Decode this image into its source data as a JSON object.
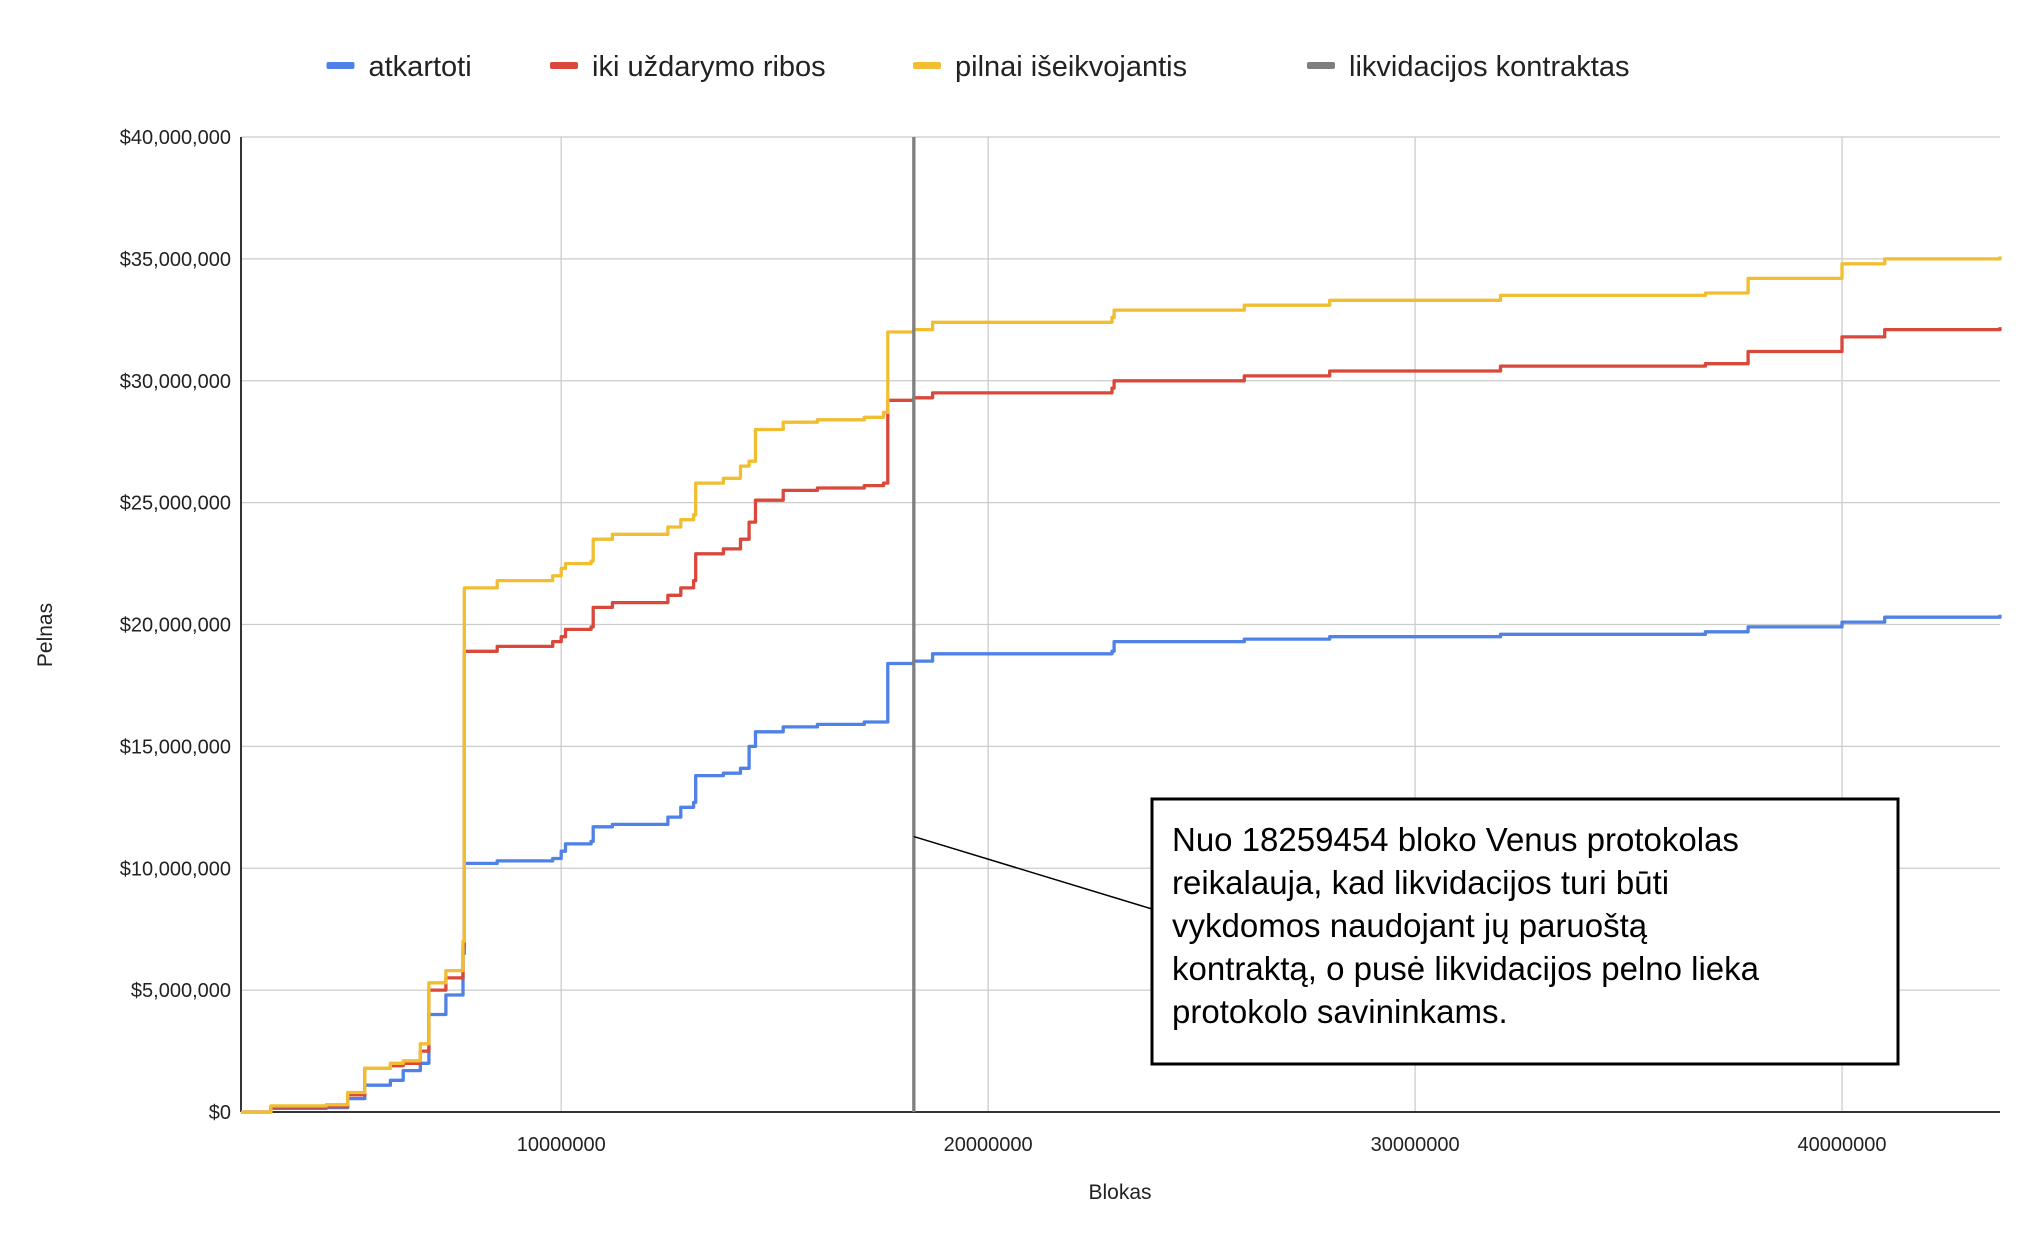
{
  "chart_data": {
    "type": "line",
    "title": "",
    "xlabel": "Blokas",
    "ylabel": "Pelnas",
    "xlim": [
      2500000,
      43700000
    ],
    "ylim": [
      0,
      40000000
    ],
    "x_ticks": [
      10000000,
      20000000,
      30000000,
      40000000
    ],
    "x_tick_labels": [
      "10000000",
      "20000000",
      "30000000",
      "40000000"
    ],
    "y_ticks": [
      0,
      5000000,
      10000000,
      15000000,
      20000000,
      25000000,
      30000000,
      35000000,
      40000000
    ],
    "y_tick_labels": [
      "$0",
      "$5,000,000",
      "$10,000,000",
      "$15,000,000",
      "$20,000,000",
      "$25,000,000",
      "$30,000,000",
      "$35,000,000",
      "$40,000,000"
    ],
    "grid": true,
    "legend_position": "top",
    "series": [
      {
        "name": "atkartoti",
        "color": "#4f81e6",
        "points": [
          [
            2500000,
            0
          ],
          [
            3200000,
            150000
          ],
          [
            4500000,
            180000
          ],
          [
            5000000,
            550000
          ],
          [
            5400000,
            1100000
          ],
          [
            6000000,
            1300000
          ],
          [
            6300000,
            1700000
          ],
          [
            6700000,
            2000000
          ],
          [
            6900000,
            4000000
          ],
          [
            7300000,
            4800000
          ],
          [
            7700000,
            5400000
          ],
          [
            7700000,
            6500000
          ],
          [
            7730000,
            10200000
          ],
          [
            8500000,
            10300000
          ],
          [
            9800000,
            10400000
          ],
          [
            10000000,
            10700000
          ],
          [
            10100000,
            11000000
          ],
          [
            10700000,
            11100000
          ],
          [
            10750000,
            11700000
          ],
          [
            11200000,
            11800000
          ],
          [
            12500000,
            12100000
          ],
          [
            12800000,
            12500000
          ],
          [
            13100000,
            12700000
          ],
          [
            13150000,
            13800000
          ],
          [
            13800000,
            13900000
          ],
          [
            14200000,
            14100000
          ],
          [
            14400000,
            15000000
          ],
          [
            14550000,
            15600000
          ],
          [
            15200000,
            15800000
          ],
          [
            16000000,
            15900000
          ],
          [
            17100000,
            16000000
          ],
          [
            17550000,
            16000000
          ],
          [
            17650000,
            18400000
          ],
          [
            18259454,
            18500000
          ],
          [
            18700000,
            18800000
          ],
          [
            22900000,
            18900000
          ],
          [
            22950000,
            19300000
          ],
          [
            26000000,
            19400000
          ],
          [
            28000000,
            19500000
          ],
          [
            32000000,
            19600000
          ],
          [
            36800000,
            19700000
          ],
          [
            37800000,
            19900000
          ],
          [
            40000000,
            20100000
          ],
          [
            41000000,
            20300000
          ],
          [
            43700000,
            20400000
          ]
        ]
      },
      {
        "name": "iki uždarymo ribos",
        "color": "#d9483b",
        "points": [
          [
            2500000,
            0
          ],
          [
            3200000,
            200000
          ],
          [
            4500000,
            220000
          ],
          [
            5000000,
            700000
          ],
          [
            5400000,
            1800000
          ],
          [
            6000000,
            1900000
          ],
          [
            6300000,
            2000000
          ],
          [
            6700000,
            2500000
          ],
          [
            6900000,
            5000000
          ],
          [
            7300000,
            5500000
          ],
          [
            7700000,
            6200000
          ],
          [
            7700000,
            6800000
          ],
          [
            7730000,
            18900000
          ],
          [
            8500000,
            19100000
          ],
          [
            9800000,
            19300000
          ],
          [
            10000000,
            19500000
          ],
          [
            10100000,
            19800000
          ],
          [
            10700000,
            19900000
          ],
          [
            10750000,
            20700000
          ],
          [
            11200000,
            20900000
          ],
          [
            12500000,
            21200000
          ],
          [
            12800000,
            21500000
          ],
          [
            13100000,
            21800000
          ],
          [
            13150000,
            22900000
          ],
          [
            13800000,
            23100000
          ],
          [
            14200000,
            23500000
          ],
          [
            14400000,
            24200000
          ],
          [
            14550000,
            25100000
          ],
          [
            15200000,
            25500000
          ],
          [
            16000000,
            25600000
          ],
          [
            17100000,
            25700000
          ],
          [
            17550000,
            25800000
          ],
          [
            17650000,
            29200000
          ],
          [
            18259454,
            29300000
          ],
          [
            18700000,
            29500000
          ],
          [
            22900000,
            29700000
          ],
          [
            22950000,
            30000000
          ],
          [
            26000000,
            30200000
          ],
          [
            28000000,
            30400000
          ],
          [
            32000000,
            30600000
          ],
          [
            36800000,
            30700000
          ],
          [
            37800000,
            31200000
          ],
          [
            40000000,
            31800000
          ],
          [
            41000000,
            32100000
          ],
          [
            43700000,
            32200000
          ]
        ]
      },
      {
        "name": "pilnai išeikvojantis",
        "color": "#f1be32",
        "points": [
          [
            2500000,
            0
          ],
          [
            3200000,
            250000
          ],
          [
            4500000,
            300000
          ],
          [
            5000000,
            800000
          ],
          [
            5400000,
            1800000
          ],
          [
            6000000,
            2000000
          ],
          [
            6300000,
            2100000
          ],
          [
            6700000,
            2800000
          ],
          [
            6900000,
            5300000
          ],
          [
            7300000,
            5800000
          ],
          [
            7700000,
            6500000
          ],
          [
            7700000,
            7000000
          ],
          [
            7730000,
            21500000
          ],
          [
            8500000,
            21800000
          ],
          [
            9800000,
            22000000
          ],
          [
            10000000,
            22300000
          ],
          [
            10100000,
            22500000
          ],
          [
            10700000,
            22600000
          ],
          [
            10750000,
            23500000
          ],
          [
            11200000,
            23700000
          ],
          [
            12500000,
            24000000
          ],
          [
            12800000,
            24300000
          ],
          [
            13100000,
            24500000
          ],
          [
            13150000,
            25800000
          ],
          [
            13800000,
            26000000
          ],
          [
            14200000,
            26500000
          ],
          [
            14400000,
            26700000
          ],
          [
            14550000,
            28000000
          ],
          [
            15200000,
            28300000
          ],
          [
            16000000,
            28400000
          ],
          [
            17100000,
            28500000
          ],
          [
            17550000,
            28700000
          ],
          [
            17650000,
            32000000
          ],
          [
            18259454,
            32100000
          ],
          [
            18700000,
            32400000
          ],
          [
            22900000,
            32600000
          ],
          [
            22950000,
            32900000
          ],
          [
            26000000,
            33100000
          ],
          [
            28000000,
            33300000
          ],
          [
            32000000,
            33500000
          ],
          [
            36800000,
            33600000
          ],
          [
            37800000,
            34200000
          ],
          [
            40000000,
            34800000
          ],
          [
            41000000,
            35000000
          ],
          [
            43700000,
            35100000
          ]
        ]
      },
      {
        "name": "likvidacijos kontraktas",
        "color": "#7f7f7f",
        "kind": "vertical-line",
        "x": 18259454
      }
    ],
    "annotation": {
      "lines": [
        "Nuo 18259454 bloko Venus protokolas",
        "reikalauja, kad likvidacijos turi būti",
        "vykdomos naudojant jų paruoštą",
        "kontraktą, o pusė likvidacijos pelno lieka",
        "protokolo savininkams."
      ],
      "pointer_y": 11300000
    }
  }
}
